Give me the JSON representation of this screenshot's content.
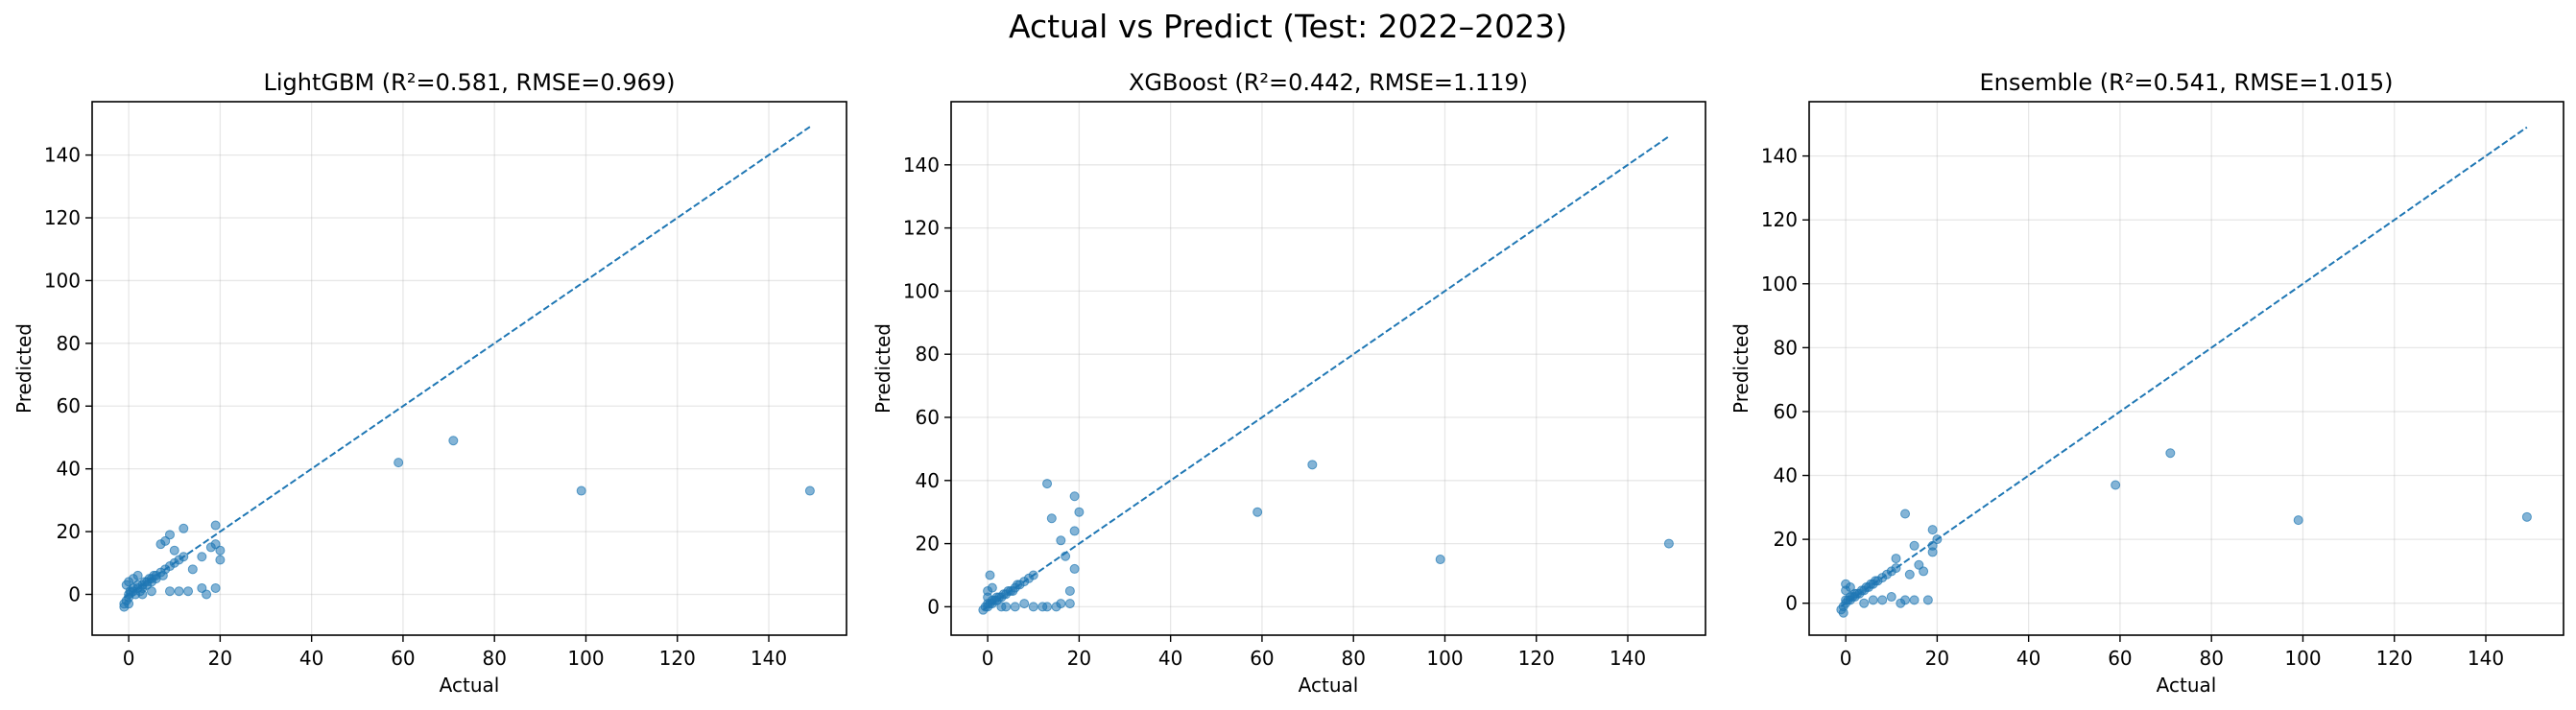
{
  "suptitle": "Actual vs Predict (Test: 2022–2023)",
  "chart_data": [
    {
      "type": "scatter",
      "title": "LightGBM  (R²=0.581, RMSE=0.969)",
      "xlabel": "Actual",
      "ylabel": "Predicted",
      "xlim": [
        -8,
        157
      ],
      "ylim": [
        -13,
        157
      ],
      "xticks": [
        0,
        20,
        40,
        60,
        80,
        100,
        120,
        140
      ],
      "yticks": [
        0,
        20,
        40,
        60,
        80,
        100,
        120,
        140
      ],
      "grid": true,
      "point_color": "#1f77b4",
      "reference_line": {
        "from": [
          -1,
          -1
        ],
        "to": [
          149,
          149
        ],
        "style": "dashed"
      },
      "points": [
        [
          -1,
          -3
        ],
        [
          -0.5,
          -2
        ],
        [
          0,
          -1
        ],
        [
          0,
          0
        ],
        [
          0.3,
          1
        ],
        [
          0.5,
          0.5
        ],
        [
          1,
          1
        ],
        [
          1,
          2
        ],
        [
          1.5,
          0
        ],
        [
          2,
          2
        ],
        [
          2,
          3
        ],
        [
          2.5,
          1
        ],
        [
          3,
          3
        ],
        [
          3,
          2
        ],
        [
          3.5,
          4
        ],
        [
          4,
          3
        ],
        [
          4,
          4
        ],
        [
          4.5,
          5
        ],
        [
          5,
          4
        ],
        [
          5,
          5
        ],
        [
          5.5,
          6
        ],
        [
          6,
          5
        ],
        [
          6,
          6
        ],
        [
          7,
          7
        ],
        [
          7.5,
          6
        ],
        [
          8,
          8
        ],
        [
          9,
          9
        ],
        [
          10,
          10
        ],
        [
          11,
          11
        ],
        [
          12,
          12
        ],
        [
          0,
          4
        ],
        [
          -0.5,
          3
        ],
        [
          1,
          5
        ],
        [
          2,
          6
        ],
        [
          -1,
          -4
        ],
        [
          0,
          -3
        ],
        [
          3,
          0
        ],
        [
          5,
          1
        ],
        [
          7,
          16
        ],
        [
          8,
          17
        ],
        [
          9,
          19
        ],
        [
          10,
          14
        ],
        [
          12,
          21
        ],
        [
          14,
          8
        ],
        [
          16,
          12
        ],
        [
          17,
          0
        ],
        [
          18,
          15
        ],
        [
          19,
          16
        ],
        [
          19,
          22
        ],
        [
          20,
          14
        ],
        [
          20,
          11
        ],
        [
          19,
          2
        ],
        [
          16,
          2
        ],
        [
          13,
          1
        ],
        [
          11,
          1
        ],
        [
          9,
          1
        ],
        [
          59,
          42
        ],
        [
          71,
          49
        ],
        [
          99,
          33
        ],
        [
          149,
          33
        ]
      ]
    },
    {
      "type": "scatter",
      "title": "XGBoost  (R²=0.442, RMSE=1.119)",
      "xlabel": "Actual",
      "ylabel": "Predicted",
      "xlim": [
        -8,
        157
      ],
      "ylim": [
        -9,
        160
      ],
      "xticks": [
        0,
        20,
        40,
        60,
        80,
        100,
        120,
        140
      ],
      "yticks": [
        0,
        20,
        40,
        60,
        80,
        100,
        120,
        140
      ],
      "grid": true,
      "point_color": "#1f77b4",
      "reference_line": {
        "from": [
          -1,
          -1
        ],
        "to": [
          149,
          149
        ],
        "style": "dashed"
      },
      "points": [
        [
          -1,
          -1
        ],
        [
          -0.5,
          0
        ],
        [
          0,
          0
        ],
        [
          0,
          1
        ],
        [
          0.5,
          1
        ],
        [
          1,
          1
        ],
        [
          1,
          2
        ],
        [
          1.5,
          2
        ],
        [
          2,
          2
        ],
        [
          2,
          3
        ],
        [
          2.5,
          3
        ],
        [
          3,
          3
        ],
        [
          3.5,
          4
        ],
        [
          4,
          4
        ],
        [
          4.5,
          5
        ],
        [
          5,
          5
        ],
        [
          5.5,
          5
        ],
        [
          6,
          6
        ],
        [
          6.5,
          7
        ],
        [
          7,
          7
        ],
        [
          8,
          8
        ],
        [
          9,
          9
        ],
        [
          10,
          10
        ],
        [
          0,
          3
        ],
        [
          0,
          5
        ],
        [
          0.5,
          10
        ],
        [
          1,
          6
        ],
        [
          3,
          0
        ],
        [
          4,
          0
        ],
        [
          6,
          0
        ],
        [
          8,
          1
        ],
        [
          10,
          0
        ],
        [
          12,
          0
        ],
        [
          13,
          0
        ],
        [
          15,
          0
        ],
        [
          16,
          1
        ],
        [
          18,
          1
        ],
        [
          13,
          39
        ],
        [
          14,
          28
        ],
        [
          16,
          21
        ],
        [
          17,
          16
        ],
        [
          18,
          5
        ],
        [
          19,
          35
        ],
        [
          19,
          12
        ],
        [
          19,
          24
        ],
        [
          20,
          30
        ],
        [
          59,
          30
        ],
        [
          71,
          45
        ],
        [
          99,
          15
        ],
        [
          149,
          20
        ]
      ]
    },
    {
      "type": "scatter",
      "title": "Ensemble  (R²=0.541, RMSE=1.015)",
      "xlabel": "Actual",
      "ylabel": "Predicted",
      "xlim": [
        -8,
        157
      ],
      "ylim": [
        -10,
        157
      ],
      "xticks": [
        0,
        20,
        40,
        60,
        80,
        100,
        120,
        140
      ],
      "yticks": [
        0,
        20,
        40,
        60,
        80,
        100,
        120,
        140
      ],
      "grid": true,
      "point_color": "#1f77b4",
      "reference_line": {
        "from": [
          -1,
          -1
        ],
        "to": [
          149,
          149
        ],
        "style": "dashed"
      },
      "points": [
        [
          -1,
          -2
        ],
        [
          -0.5,
          -1
        ],
        [
          0,
          0
        ],
        [
          0,
          1
        ],
        [
          0.5,
          1
        ],
        [
          1,
          1
        ],
        [
          1,
          2
        ],
        [
          1.5,
          2
        ],
        [
          2,
          2
        ],
        [
          2,
          3
        ],
        [
          2.5,
          3
        ],
        [
          3,
          3
        ],
        [
          3.5,
          4
        ],
        [
          4,
          4
        ],
        [
          4.5,
          5
        ],
        [
          5,
          5
        ],
        [
          5.5,
          6
        ],
        [
          6,
          6
        ],
        [
          6.5,
          7
        ],
        [
          7,
          7
        ],
        [
          8,
          8
        ],
        [
          9,
          9
        ],
        [
          10,
          10
        ],
        [
          11,
          11
        ],
        [
          0,
          4
        ],
        [
          0,
          6
        ],
        [
          1,
          5
        ],
        [
          -0.5,
          -3
        ],
        [
          4,
          0
        ],
        [
          6,
          1
        ],
        [
          8,
          1
        ],
        [
          10,
          2
        ],
        [
          12,
          0
        ],
        [
          13,
          1
        ],
        [
          15,
          1
        ],
        [
          18,
          1
        ],
        [
          13,
          28
        ],
        [
          14,
          9
        ],
        [
          15,
          18
        ],
        [
          16,
          12
        ],
        [
          17,
          10
        ],
        [
          19,
          23
        ],
        [
          19,
          18
        ],
        [
          20,
          20
        ],
        [
          19,
          16
        ],
        [
          11,
          14
        ],
        [
          59,
          37
        ],
        [
          71,
          47
        ],
        [
          99,
          26
        ],
        [
          149,
          27
        ]
      ]
    }
  ]
}
